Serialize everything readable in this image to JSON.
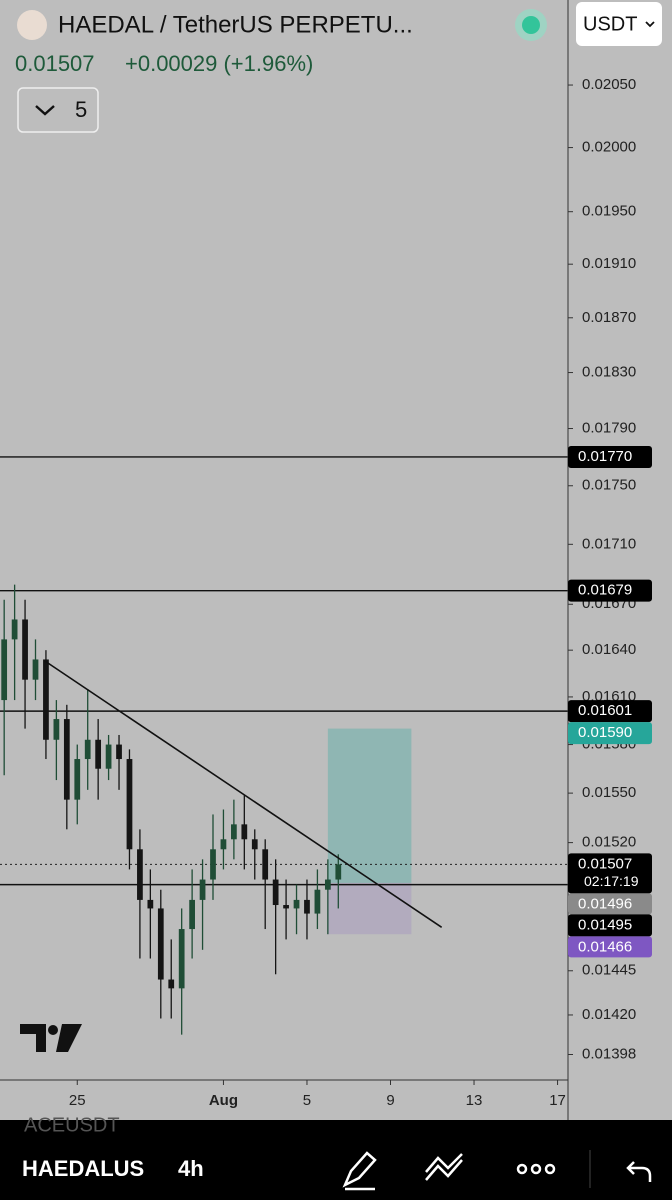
{
  "header": {
    "title": "HAEDAL / TetherUS PERPETU...",
    "currency": "USDT",
    "price": "0.01507",
    "change": "+0.00029 (+1.96%)",
    "indicators": "5"
  },
  "chart_data": {
    "type": "candlestick",
    "log_scale": true,
    "up_color": "#1f4d36",
    "down_color": "#151515",
    "x": [
      -7,
      -6,
      -5,
      -4,
      -3,
      -2,
      -1,
      0,
      1,
      2,
      3,
      4,
      5,
      6,
      7,
      8,
      9,
      10,
      11,
      12,
      13,
      14,
      15,
      16,
      17,
      18,
      19,
      20,
      21,
      22,
      23,
      24,
      25
    ],
    "open": [
      0.01608,
      0.01647,
      0.0166,
      0.01621,
      0.01634,
      0.01583,
      0.01596,
      0.01546,
      0.01571,
      0.01583,
      0.01565,
      0.0158,
      0.01571,
      0.01516,
      0.01486,
      0.01481,
      0.0144,
      0.01435,
      0.01469,
      0.01486,
      0.01498,
      0.01516,
      0.01522,
      0.01531,
      0.01522,
      0.01516,
      0.01498,
      0.01483,
      0.01481,
      0.01486,
      0.01478,
      0.01492,
      0.01498
    ],
    "close": [
      0.01647,
      0.0166,
      0.01621,
      0.01634,
      0.01583,
      0.01596,
      0.01546,
      0.01571,
      0.01583,
      0.01565,
      0.0158,
      0.01571,
      0.01516,
      0.01486,
      0.01481,
      0.0144,
      0.01435,
      0.01469,
      0.01486,
      0.01498,
      0.01516,
      0.01522,
      0.01531,
      0.01522,
      0.01516,
      0.01498,
      0.01483,
      0.01481,
      0.01486,
      0.01478,
      0.01492,
      0.01498,
      0.01507
    ],
    "high": [
      0.01673,
      0.01683,
      0.01673,
      0.01647,
      0.0164,
      0.01608,
      0.01605,
      0.0158,
      0.01615,
      0.01596,
      0.01586,
      0.01586,
      0.01577,
      0.01528,
      0.01504,
      0.01492,
      0.01463,
      0.01481,
      0.01504,
      0.0151,
      0.01537,
      0.0154,
      0.01546,
      0.01549,
      0.01528,
      0.01522,
      0.0151,
      0.01498,
      0.01495,
      0.01498,
      0.01504,
      0.0151,
      0.01513
    ],
    "low": [
      0.01561,
      0.01608,
      0.0159,
      0.01608,
      0.01571,
      0.01558,
      0.01528,
      0.01531,
      0.01552,
      0.01546,
      0.01558,
      0.01552,
      0.01504,
      0.01452,
      0.01452,
      0.01418,
      0.01418,
      0.01409,
      0.01452,
      0.01457,
      0.01486,
      0.01504,
      0.0151,
      0.01504,
      0.01498,
      0.01469,
      0.01443,
      0.01463,
      0.01466,
      0.01463,
      0.01469,
      0.01466,
      0.01481
    ],
    "xlim": [
      -7.4,
      47
    ],
    "xticks": [
      {
        "value": 0,
        "label": "25"
      },
      {
        "value": 14,
        "label": "Aug"
      },
      {
        "value": 22,
        "label": "5"
      },
      {
        "value": 30,
        "label": "9"
      },
      {
        "value": 38,
        "label": "13"
      },
      {
        "value": 46,
        "label": "17"
      }
    ],
    "ylim": [
      0.01384,
      0.0212
    ],
    "yticks": [
      {
        "value": 0.0205,
        "label": "0.02050"
      },
      {
        "value": 0.02,
        "label": "0.02000"
      },
      {
        "value": 0.0195,
        "label": "0.01950"
      },
      {
        "value": 0.0191,
        "label": "0.01910"
      },
      {
        "value": 0.0187,
        "label": "0.01870"
      },
      {
        "value": 0.0183,
        "label": "0.01830"
      },
      {
        "value": 0.0179,
        "label": "0.01790"
      },
      {
        "value": 0.0175,
        "label": "0.01750"
      },
      {
        "value": 0.0171,
        "label": "0.01710"
      },
      {
        "value": 0.0167,
        "label": "0.01670"
      },
      {
        "value": 0.0164,
        "label": "0.01640"
      },
      {
        "value": 0.0161,
        "label": "0.01610"
      },
      {
        "value": 0.0158,
        "label": "0.01580"
      },
      {
        "value": 0.0155,
        "label": "0.01550"
      },
      {
        "value": 0.0152,
        "label": "0.01520"
      },
      0.01445,
      {
        "value": 0.0142,
        "label": "0.01420"
      },
      0.01398
    ],
    "levels": [
      {
        "value": 0.0177,
        "label": "0.01770"
      },
      0.01679,
      0.01601,
      0.01495
    ],
    "trendline": {
      "x": [
        -3.1,
        34.9
      ],
      "y": [
        0.01633,
        0.0147
      ]
    },
    "position": {
      "x": [
        24,
        32
      ],
      "target": {
        "value": 0.0159,
        "label": "0.01590"
      },
      "entry": 0.01496,
      "stop": 0.01466,
      "target_color": "#26a69a",
      "entry_color": "#8a8a8a",
      "stop_color": "#7e57c2"
    },
    "current_price": 0.01507,
    "countdown": "02:17:19"
  },
  "footer": {
    "ghost_symbol": "ACEUSDT",
    "symbol": "HAEDALUS",
    "interval": "4h"
  }
}
